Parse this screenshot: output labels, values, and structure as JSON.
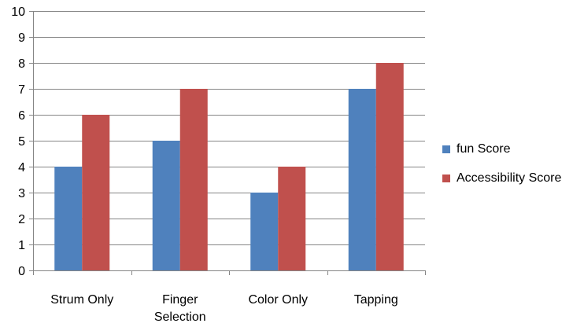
{
  "chart_data": {
    "type": "bar",
    "categories": [
      "Strum Only",
      "Finger Selection",
      "Color Only",
      "Tapping"
    ],
    "category_lines": [
      [
        "Strum Only"
      ],
      [
        "Finger",
        "Selection"
      ],
      [
        "Color Only"
      ],
      [
        "Tapping"
      ]
    ],
    "series": [
      {
        "name": "fun Score",
        "values": [
          4,
          5,
          3,
          7
        ],
        "color": "#4F81BD"
      },
      {
        "name": "Accessibility Score",
        "values": [
          6,
          7,
          4,
          8
        ],
        "color": "#C0504D"
      }
    ],
    "ylim": [
      0,
      10
    ],
    "yticks": [
      "0",
      "1",
      "2",
      "3",
      "4",
      "5",
      "6",
      "7",
      "8",
      "9",
      "10"
    ],
    "grid": true,
    "legend_position": "right"
  }
}
